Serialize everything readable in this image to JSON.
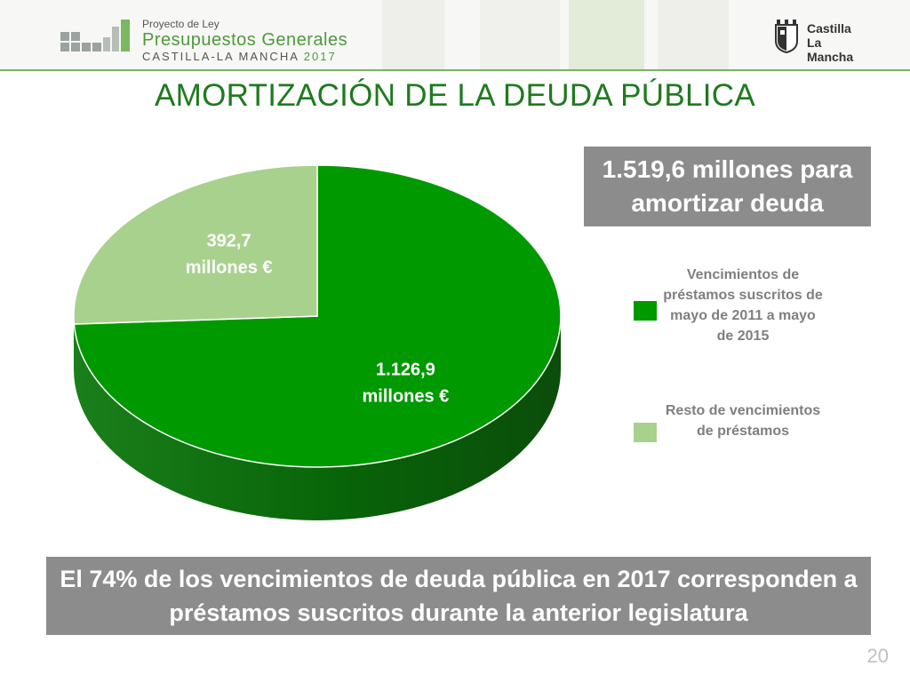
{
  "header": {
    "logo_line1": "Proyecto de Ley",
    "logo_line2": "Presupuestos Generales",
    "logo_line3_region": "CASTILLA-LA MANCHA",
    "logo_line3_year": "2017",
    "brand_line1": "Castilla",
    "brand_line2": "La Mancha"
  },
  "title": "AMORTIZACIÓN DE LA DEUDA PÚBLICA",
  "info_box": "1.519,6 millones para amortizar deuda",
  "legend": [
    {
      "label": "Vencimientos de préstamos suscritos de mayo de 2011 a mayo de 2015",
      "color": "#009900"
    },
    {
      "label": "Resto de vencimientos de préstamos",
      "color": "#a9d18e"
    }
  ],
  "chart_data": {
    "type": "pie",
    "title": "",
    "slices": [
      {
        "name": "Vencimientos de préstamos suscritos de mayo de 2011 a mayo de 2015",
        "value": 1126.9,
        "label_line1": "1.126,9",
        "label_line2": "millones €",
        "color": "#009900"
      },
      {
        "name": "Resto de vencimientos de préstamos",
        "value": 392.7,
        "label_line1": "392,7",
        "label_line2": "millones €",
        "color": "#a9d18e"
      }
    ]
  },
  "footer": "El 74% de los vencimientos de deuda pública en 2017 corresponden a préstamos suscritos durante la anterior legislatura",
  "page_number": "20"
}
